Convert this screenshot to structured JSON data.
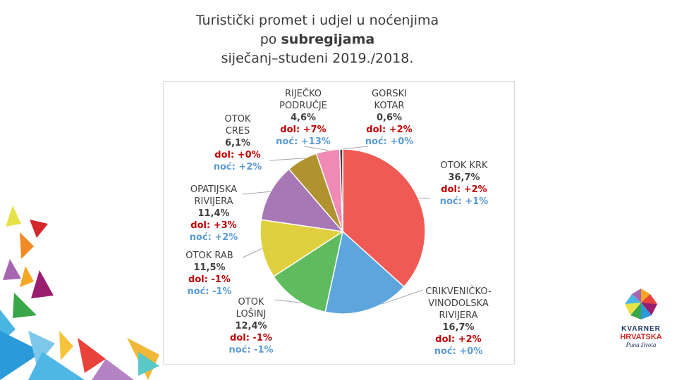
{
  "title": {
    "line1": "Turistički promet i udjel u noćenjima",
    "line2_prefix": "po ",
    "line2_bold": "subregijama",
    "line3": "siječanj–studeni 2019./2018."
  },
  "chart_data": {
    "type": "pie",
    "title": "Turistički promet i udjel u noćenjima po subregijama, siječanj–studeni 2019./2018.",
    "slices": [
      {
        "name": "OTOK KRK",
        "value": 36.7,
        "pct": "36,7%",
        "dol": "dol: +2%",
        "noc": "noć: +1%",
        "color": "#f05a55"
      },
      {
        "name": "CRIKVENIČKO-VINODOLSKA RIVIJERA",
        "value": 16.7,
        "pct": "16,7%",
        "dol": "dol: +2%",
        "noc": "noć: +0%",
        "color": "#5da5dd"
      },
      {
        "name": "OTOK LOŠINJ",
        "value": 12.4,
        "pct": "12,4%",
        "dol": "dol: -1%",
        "noc": "noć: -1%",
        "color": "#5ebc5e"
      },
      {
        "name": "OTOK RAB",
        "value": 11.5,
        "pct": "11,5%",
        "dol": "dol: -1%",
        "noc": "noć: -1%",
        "color": "#e0cf3e"
      },
      {
        "name": "OPATIJSKA RIVIJERA",
        "value": 11.4,
        "pct": "11,4%",
        "dol": "dol: +3%",
        "noc": "noć: +2%",
        "color": "#a877b5"
      },
      {
        "name": "OTOK CRES",
        "value": 6.1,
        "pct": "6,1%",
        "dol": "dol: +0%",
        "noc": "noć: +2%",
        "color": "#b0922e"
      },
      {
        "name": "RIJEČKO PODRUČJE",
        "value": 4.6,
        "pct": "4,6%",
        "dol": "dol: +7%",
        "noc": "noć: +13%",
        "color": "#f08ab4"
      },
      {
        "name": "GORSKI KOTAR",
        "value": 0.6,
        "pct": "0,6%",
        "dol": "dol: +2%",
        "noc": "noć: +0%",
        "color": "#404040"
      }
    ],
    "labels": {
      "krk": {
        "line1": "OTOK KRK"
      },
      "crikvenica": {
        "line1": "CRIKVENIČKO-",
        "line2": "VINODOLSKA",
        "line3": "RIVIJERA"
      },
      "losinj": {
        "line1": "OTOK",
        "line2": "LOŠINJ"
      },
      "rab": {
        "line1": "OTOK RAB"
      },
      "opatija": {
        "line1": "OPATIJSKA",
        "line2": "RIVIJERA"
      },
      "cres": {
        "line1": "OTOK",
        "line2": "CRES"
      },
      "rijeka": {
        "line1": "RIJEČKO",
        "line2": "PODRUČJE"
      },
      "gorski": {
        "line1": "GORSKI",
        "line2": "KOTAR"
      }
    }
  },
  "logo": {
    "name": "KVARNER",
    "hr": "HRVATSKA",
    "tag": "Puna života"
  },
  "colors": {
    "dol": "#c00000",
    "noc": "#5b9bd5"
  }
}
